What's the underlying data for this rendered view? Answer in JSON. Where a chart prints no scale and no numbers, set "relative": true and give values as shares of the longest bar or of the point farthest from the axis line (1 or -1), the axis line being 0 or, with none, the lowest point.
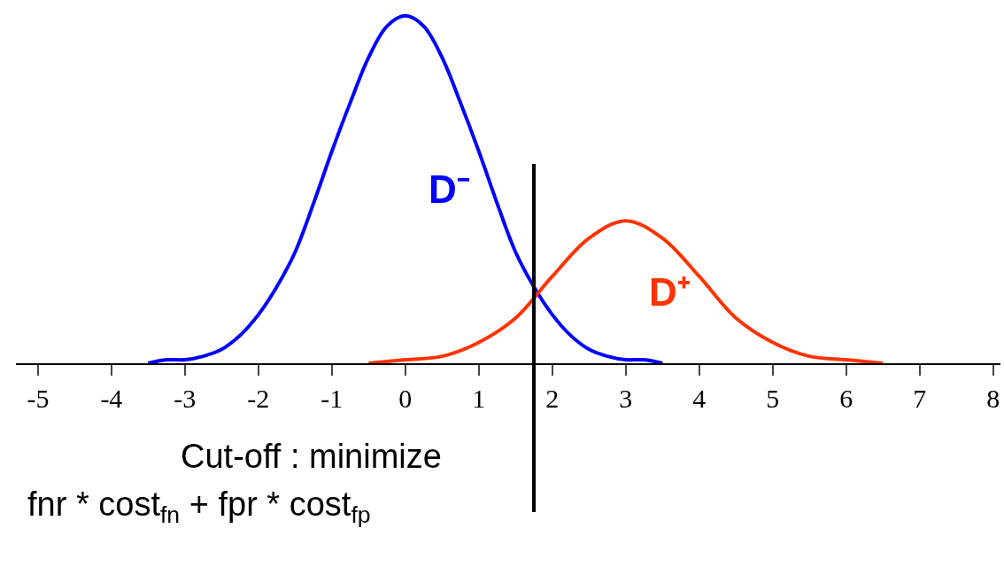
{
  "chart_data": {
    "type": "line",
    "relative": true,
    "xlim": [
      -5.3,
      8.1
    ],
    "xticks": [
      -5,
      -4,
      -3,
      -2,
      -1,
      0,
      1,
      2,
      3,
      4,
      5,
      6,
      7,
      8
    ],
    "legend": false,
    "marker": "none",
    "line_style": "solid",
    "series": [
      {
        "name": "D⁻",
        "color": "#0000ff",
        "x": [
          -3.5,
          -3.25,
          -3,
          -2.75,
          -2.5,
          -2.25,
          -2,
          -1.75,
          -1.5,
          -1.25,
          -1,
          -0.75,
          -0.5,
          -0.25,
          0,
          0.25,
          0.5,
          0.75,
          1,
          1.25,
          1.5,
          1.75,
          2,
          2.25,
          2.5,
          2.75,
          3,
          3.25,
          3.5
        ],
        "values": [
          0.0,
          0.01,
          0.01,
          0.02,
          0.04,
          0.08,
          0.14,
          0.22,
          0.32,
          0.46,
          0.61,
          0.75,
          0.88,
          0.97,
          1.0,
          0.97,
          0.88,
          0.75,
          0.61,
          0.46,
          0.32,
          0.22,
          0.14,
          0.08,
          0.04,
          0.02,
          0.01,
          0.01,
          0.0
        ]
      },
      {
        "name": "D⁺",
        "color": "#ff3300",
        "x": [
          -0.5,
          0,
          0.5,
          1,
          1.5,
          2,
          2.5,
          3,
          3.5,
          4,
          4.5,
          5,
          5.5,
          6,
          6.5
        ],
        "values": [
          0.0,
          0.01,
          0.02,
          0.06,
          0.13,
          0.25,
          0.36,
          0.41,
          0.36,
          0.25,
          0.13,
          0.06,
          0.02,
          0.01,
          0.0
        ]
      }
    ],
    "ref_lines": [
      {
        "axis": "x",
        "value": 1.75,
        "color": "#000000"
      }
    ],
    "annotations": [
      "Cut-off : minimize",
      "fnr * cost$_{fn}$ + fpr * cost$_{fp}$"
    ]
  }
}
